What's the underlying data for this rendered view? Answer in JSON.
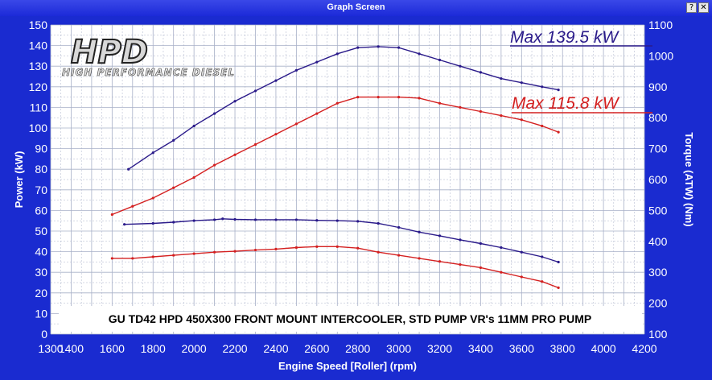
{
  "window": {
    "title": "Graph Screen",
    "help_glyph": "?",
    "close_glyph": "✕"
  },
  "logo": {
    "main": "HPD",
    "sub": "HIGH PERFORMANCE DIESEL"
  },
  "note": "GU TD42 HPD 450X300 FRONT MOUNT INTERCOOLER, STD PUMP VR's 11MM PRO PUMP",
  "max_labels": [
    {
      "text": "Max 139.5 kW",
      "color": "#2a1a8a"
    },
    {
      "text": "Max 115.8 kW",
      "color": "#d42020"
    }
  ],
  "chart_data": {
    "type": "line",
    "xlabel": "Engine Speed [Roller] (rpm)",
    "ylabel": "Power (kW)",
    "y2label": "Torque (ATW) (Nm)",
    "xlim": [
      1300,
      4200
    ],
    "ylim": [
      0,
      150
    ],
    "y2lim": [
      100,
      1100
    ],
    "x_ticks": [
      1300,
      1400,
      1600,
      1800,
      2000,
      2200,
      2400,
      2600,
      2800,
      3000,
      3200,
      3400,
      3600,
      3800,
      4000,
      4200
    ],
    "y_ticks": [
      0,
      10,
      20,
      30,
      40,
      50,
      60,
      70,
      80,
      90,
      100,
      110,
      120,
      130,
      140,
      150
    ],
    "y2_ticks": [
      100,
      200,
      300,
      400,
      500,
      600,
      700,
      800,
      900,
      1000,
      1100
    ],
    "grid": true,
    "colors": {
      "background": "#1a2bd0",
      "plot": "#ffffff",
      "grid": "#a8b0c8",
      "blue": "#2a1a8a",
      "red": "#d42020"
    },
    "series": [
      {
        "color": "#2a1a8a",
        "axis": "left",
        "x": [
          1680,
          1800,
          1900,
          2000,
          2100,
          2200,
          2300,
          2400,
          2500,
          2600,
          2700,
          2800,
          2900,
          3000,
          3100,
          3200,
          3300,
          3400,
          3500,
          3600,
          3700,
          3780
        ],
        "values": [
          80,
          88,
          94,
          101,
          107,
          113,
          118,
          123,
          128,
          132,
          136,
          139,
          139.5,
          139,
          136,
          133,
          130,
          127,
          124,
          122,
          120,
          118.5
        ]
      },
      {
        "color": "#d42020",
        "axis": "left",
        "x": [
          1600,
          1700,
          1800,
          1900,
          2000,
          2100,
          2200,
          2300,
          2400,
          2500,
          2600,
          2700,
          2800,
          2900,
          3000,
          3100,
          3200,
          3300,
          3400,
          3500,
          3600,
          3700,
          3780
        ],
        "values": [
          58,
          62,
          66,
          71,
          76,
          82,
          87,
          92,
          97,
          102,
          107,
          112,
          115,
          115,
          115,
          114.5,
          112,
          110,
          108,
          106,
          104,
          101,
          98
        ]
      },
      {
        "color": "#2a1a8a",
        "axis": "right",
        "x": [
          1660,
          1800,
          1900,
          2000,
          2100,
          2140,
          2200,
          2300,
          2400,
          2500,
          2600,
          2700,
          2800,
          2900,
          3000,
          3100,
          3200,
          3300,
          3400,
          3500,
          3600,
          3700,
          3780
        ],
        "values": [
          455,
          458,
          462,
          467,
          470,
          473,
          471,
          470,
          470,
          470,
          468,
          467,
          465,
          458,
          445,
          430,
          418,
          405,
          393,
          380,
          365,
          350,
          333
        ]
      },
      {
        "color": "#d42020",
        "axis": "right",
        "x": [
          1600,
          1700,
          1800,
          1900,
          2000,
          2100,
          2200,
          2300,
          2400,
          2500,
          2600,
          2700,
          2800,
          2900,
          3000,
          3100,
          3200,
          3300,
          3400,
          3500,
          3600,
          3700,
          3780
        ],
        "values": [
          345,
          345,
          350,
          355,
          360,
          365,
          368,
          372,
          375,
          380,
          383,
          383,
          378,
          365,
          355,
          345,
          335,
          325,
          315,
          300,
          285,
          270,
          250
        ]
      }
    ]
  }
}
